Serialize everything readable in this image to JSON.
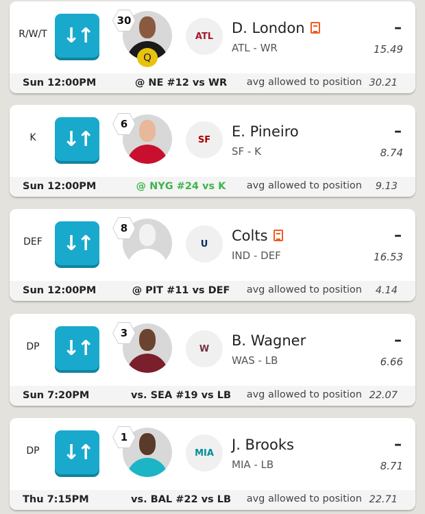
{
  "swap_icon": "swap-arrows-icon",
  "avg_label": "avg allowed to position",
  "players": [
    {
      "slot": "R/W/T",
      "number": "30",
      "status": "Q",
      "name": "D. London",
      "news": true,
      "team_pos": "ATL - WR",
      "score": "–",
      "projection": "15.49",
      "time": "Sun 12:00PM",
      "matchup": "@ NE #12 vs WR",
      "matchup_color": "#222222",
      "avg": "30.21",
      "logo_text": "ATL",
      "logo_color": "#a71930",
      "jersey": "#1a1a1a",
      "skin": "#8a5a40"
    },
    {
      "slot": "K",
      "number": "6",
      "status": "",
      "name": "E. Pineiro",
      "news": false,
      "team_pos": "SF - K",
      "score": "–",
      "projection": "8.74",
      "time": "Sun 12:00PM",
      "matchup": "@ NYG #24 vs K",
      "matchup_color": "#3cb54a",
      "avg": "9.13",
      "logo_text": "SF",
      "logo_color": "#aa0000",
      "jersey": "#c8102e",
      "skin": "#e8b89a"
    },
    {
      "slot": "DEF",
      "number": "8",
      "status": "",
      "name": "Colts",
      "news": true,
      "team_pos": "IND - DEF",
      "score": "–",
      "projection": "16.53",
      "time": "Sun 12:00PM",
      "matchup": "@ PIT #11 vs DEF",
      "matchup_color": "#222222",
      "avg": "4.14",
      "logo_text": "U",
      "logo_color": "#002c5f",
      "jersey": "#ffffff",
      "skin": "#f2f2f2"
    },
    {
      "slot": "DP",
      "number": "3",
      "status": "",
      "name": "B. Wagner",
      "news": false,
      "team_pos": "WAS - LB",
      "score": "–",
      "projection": "6.66",
      "time": "Sun 7:20PM",
      "matchup": "vs. SEA #19 vs LB",
      "matchup_color": "#222222",
      "avg": "22.07",
      "logo_text": "W",
      "logo_color": "#773141",
      "jersey": "#7a1f2b",
      "skin": "#6b4430"
    },
    {
      "slot": "DP",
      "number": "1",
      "status": "",
      "name": "J. Brooks",
      "news": false,
      "team_pos": "MIA - LB",
      "score": "–",
      "projection": "8.71",
      "time": "Thu 7:15PM",
      "matchup": "vs. BAL #22 vs LB",
      "matchup_color": "#222222",
      "avg": "22.71",
      "logo_text": "MIA",
      "logo_color": "#008e97",
      "jersey": "#1cb5c5",
      "skin": "#5a3a2a"
    }
  ]
}
